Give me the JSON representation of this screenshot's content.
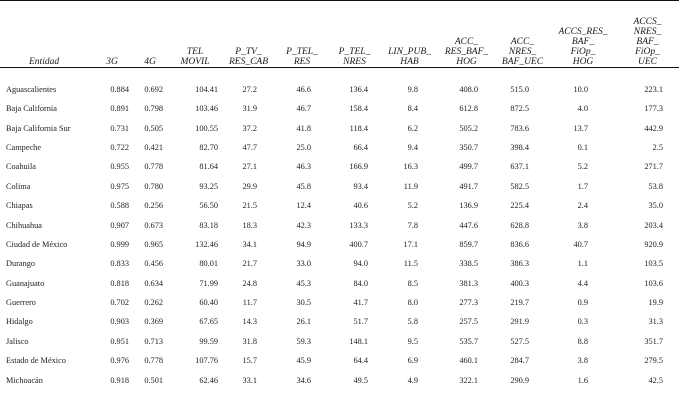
{
  "table": {
    "headers": [
      [
        "Entidad"
      ],
      [
        "3G"
      ],
      [
        "4G"
      ],
      [
        "TEL",
        "MOVIL"
      ],
      [
        "P_TV_",
        "RES_CAB"
      ],
      [
        "P_TEL_",
        "RES"
      ],
      [
        "P_TEL_",
        "NRES"
      ],
      [
        "LIN_PUB_",
        "HAB"
      ],
      [
        "ACC_",
        "RES_BAF_",
        "HOG"
      ],
      [
        "ACC_",
        "NRES_",
        "BAF_UEC"
      ],
      [
        "ACCS_RES_",
        "BAF_",
        "FiOp_",
        "HOG"
      ],
      [
        "ACCS_",
        "NRES_",
        "BAF_",
        "FiOp_",
        "UEC"
      ]
    ],
    "rows": [
      [
        "Aguascalientes",
        "0.884",
        "0.692",
        "104.41",
        "27.2",
        "46.6",
        "136.4",
        "9.8",
        "408.0",
        "515.0",
        "10.0",
        "223.1"
      ],
      [
        "Baja California",
        "0.891",
        "0.798",
        "103.46",
        "31.9",
        "46.7",
        "158.4",
        "8.4",
        "612.8",
        "872.5",
        "4.0",
        "177.3"
      ],
      [
        "Baja California Sur",
        "0.731",
        "0.505",
        "100.55",
        "37.2",
        "41.8",
        "118.4",
        "6.2",
        "505.2",
        "783.6",
        "13.7",
        "442.9"
      ],
      [
        "Campeche",
        "0.722",
        "0.421",
        "82.70",
        "47.7",
        "25.0",
        "66.4",
        "9.4",
        "350.7",
        "398.4",
        "0.1",
        "2.5"
      ],
      [
        "Coahuila",
        "0.955",
        "0.778",
        "81.64",
        "27.1",
        "46.3",
        "166.9",
        "16.3",
        "499.7",
        "637.1",
        "5.2",
        "271.7"
      ],
      [
        "Colima",
        "0.975",
        "0.780",
        "93.25",
        "29.9",
        "45.8",
        "93.4",
        "11.9",
        "491.7",
        "582.5",
        "1.7",
        "53.8"
      ],
      [
        "Chiapas",
        "0.588",
        "0.256",
        "56.50",
        "21.5",
        "12.4",
        "40.6",
        "5.2",
        "136.9",
        "225.4",
        "2.4",
        "35.0"
      ],
      [
        "Chihuahua",
        "0.907",
        "0.673",
        "83.18",
        "18.3",
        "42.3",
        "133.3",
        "7.8",
        "447.6",
        "628.8",
        "3.8",
        "203.4"
      ],
      [
        "Ciudad de México",
        "0.999",
        "0.965",
        "132.46",
        "34.1",
        "94.9",
        "400.7",
        "17.1",
        "859.7",
        "836.6",
        "40.7",
        "920.9"
      ],
      [
        "Durango",
        "0.833",
        "0.456",
        "80.01",
        "21.7",
        "33.0",
        "94.0",
        "11.5",
        "338.5",
        "386.3",
        "1.1",
        "103.5"
      ],
      [
        "Guanajuato",
        "0.818",
        "0.634",
        "71.99",
        "24.8",
        "45.3",
        "84.0",
        "8.5",
        "381.3",
        "400.3",
        "4.4",
        "103.6"
      ],
      [
        "Guerrero",
        "0.702",
        "0.262",
        "60.40",
        "11.7",
        "30.5",
        "41.7",
        "8.0",
        "277.3",
        "219.7",
        "0.9",
        "19.9"
      ],
      [
        "Hidalgo",
        "0.903",
        "0.369",
        "67.65",
        "14.3",
        "26.1",
        "51.7",
        "5.8",
        "257.5",
        "291.9",
        "0.3",
        "31.3"
      ],
      [
        "Jalisco",
        "0.951",
        "0.713",
        "99.59",
        "31.8",
        "59.3",
        "148.1",
        "9.5",
        "535.7",
        "527.5",
        "8.8",
        "351.7"
      ],
      [
        "Estado de México",
        "0.976",
        "0.778",
        "107.76",
        "15.7",
        "45.9",
        "64.4",
        "6.9",
        "460.1",
        "284.7",
        "3.8",
        "279.5"
      ],
      [
        "Michoacán",
        "0.918",
        "0.501",
        "62.46",
        "33.1",
        "34.6",
        "49.5",
        "4.9",
        "322.1",
        "290.9",
        "1.6",
        "42.5"
      ]
    ]
  }
}
